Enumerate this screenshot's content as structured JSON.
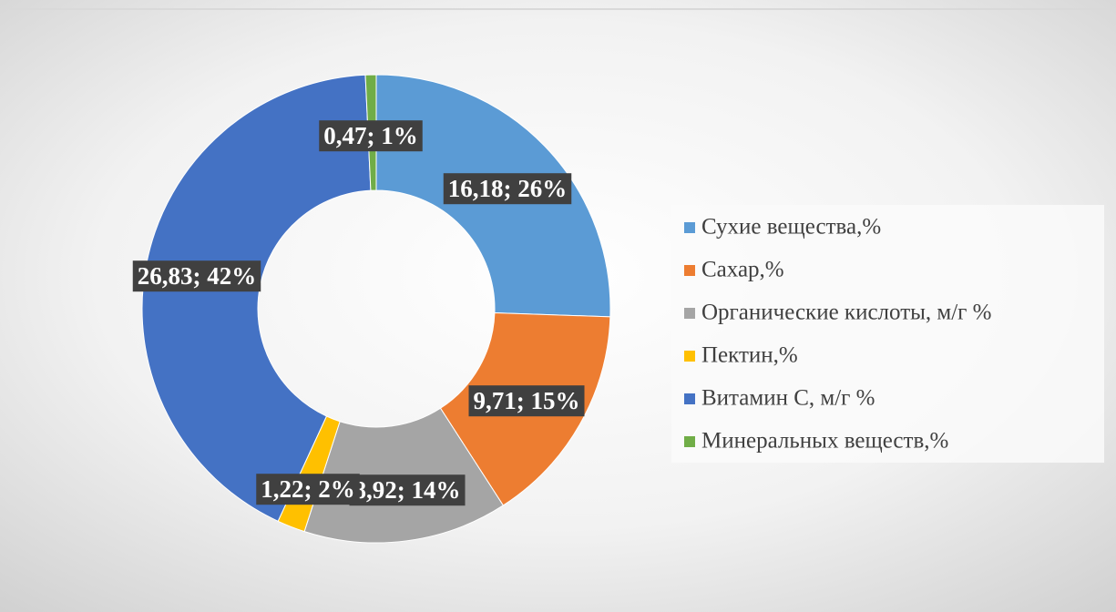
{
  "chart_data": {
    "type": "doughnut",
    "categories": [
      "Сухие вещества,%",
      "Сахар,%",
      "Органические кислоты, м/г %",
      "Пектин,%",
      "Витамин С, м/г %",
      "Минеральных веществ,%"
    ],
    "values": [
      16.18,
      9.71,
      8.92,
      1.22,
      26.83,
      0.47
    ],
    "value_labels": [
      "16,18; 26%",
      "9,71; 15%",
      "8,92; 14%",
      "1,22; 2%",
      "26,83; 42%",
      "0,47; 1%"
    ],
    "colors": [
      "#5b9bd5",
      "#ed7d31",
      "#a5a5a5",
      "#ffc000",
      "#4472c4",
      "#70ad47"
    ],
    "legend": "right"
  }
}
